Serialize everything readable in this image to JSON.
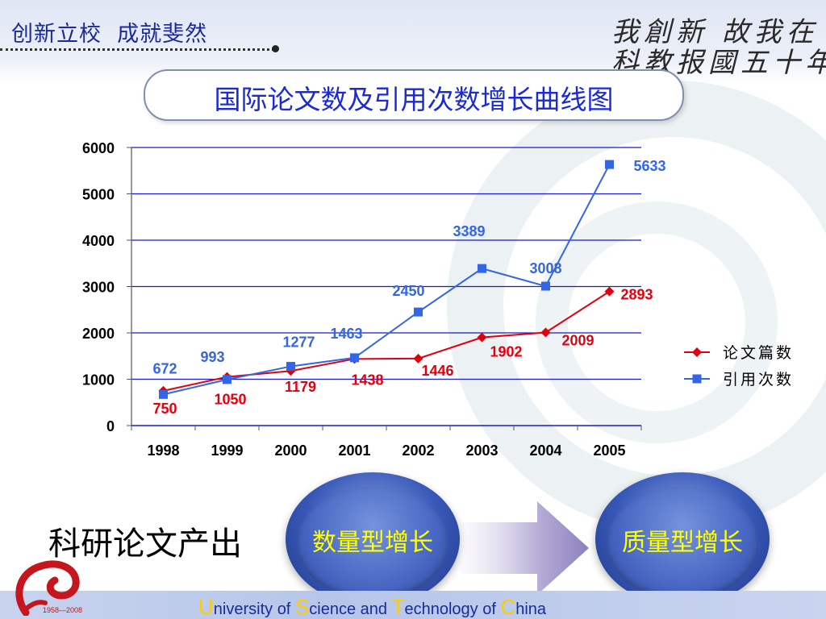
{
  "header": {
    "motto": "创新立校  成就斐然",
    "calligraphy_line1": "我創新 故我在",
    "calligraphy_line2": "科教报國五十年"
  },
  "slide_title": "国际论文数及引用次数增长曲线图",
  "chart_data": {
    "type": "line",
    "title": "",
    "xlabel": "",
    "ylabel": "",
    "categories": [
      "1998",
      "1999",
      "2000",
      "2001",
      "2002",
      "2003",
      "2004",
      "2005"
    ],
    "ylim": [
      0,
      6000
    ],
    "yticks": [
      0,
      1000,
      2000,
      3000,
      4000,
      5000,
      6000
    ],
    "grid": true,
    "legend_position": "right",
    "series": [
      {
        "name": "论文篇数",
        "color": "#e0000f",
        "marker": "diamond",
        "values": [
          750,
          1050,
          1179,
          1438,
          1446,
          1902,
          2009,
          2893
        ]
      },
      {
        "name": "引用次数",
        "color": "#3366e6",
        "marker": "square",
        "values": [
          672,
          993,
          1277,
          1463,
          2450,
          3389,
          3008,
          5633
        ]
      }
    ]
  },
  "flow": {
    "subject": "科研论文产出",
    "from": "数量型增长",
    "to": "质量型增长"
  },
  "footer": {
    "u": "U",
    "u_rest": "niversity of ",
    "s": "S",
    "s_rest": "cience and ",
    "t": "T",
    "t_rest": "echnology of ",
    "c": "C",
    "c_rest": "hina",
    "logo_years": "1958—2008"
  },
  "colors": {
    "title_text": "#1a2ad6",
    "axis_blue": "#1a1ac8",
    "bubble_text": "#ffff00"
  }
}
